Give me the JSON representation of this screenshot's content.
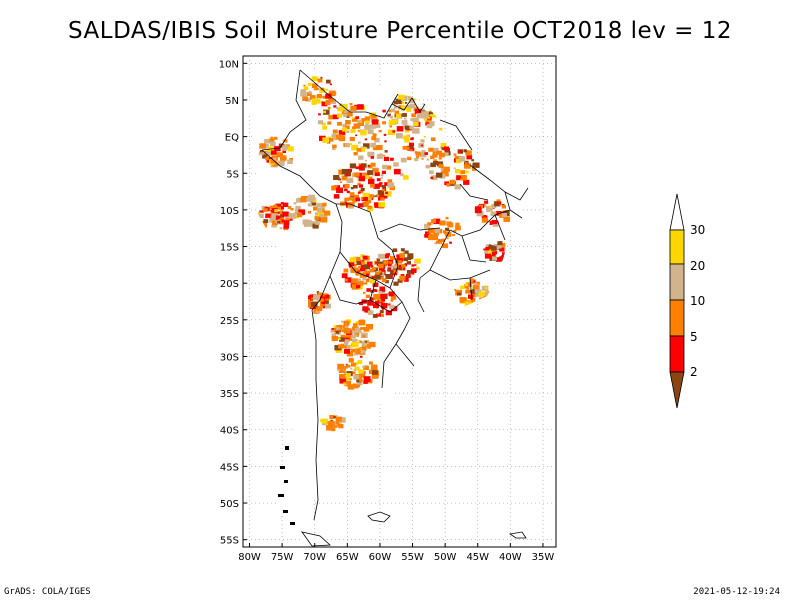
{
  "title": "SALDAS/IBIS Soil Moisture Percentile OCT2018 lev = 12",
  "footer": {
    "left": "GrADS: COLA/IGES",
    "right": "2021-05-12-19:24"
  },
  "map": {
    "lon_range": [
      -81,
      -33
    ],
    "lat_range": [
      -56,
      11
    ],
    "lon_ticks": [
      {
        "lon": -80,
        "label": "80W"
      },
      {
        "lon": -75,
        "label": "75W"
      },
      {
        "lon": -70,
        "label": "70W"
      },
      {
        "lon": -65,
        "label": "65W"
      },
      {
        "lon": -60,
        "label": "60W"
      },
      {
        "lon": -55,
        "label": "55W"
      },
      {
        "lon": -50,
        "label": "50W"
      },
      {
        "lon": -45,
        "label": "45W"
      },
      {
        "lon": -40,
        "label": "40W"
      },
      {
        "lon": -35,
        "label": "35W"
      }
    ],
    "lat_ticks": [
      {
        "lat": 10,
        "label": "10N"
      },
      {
        "lat": 5,
        "label": "5N"
      },
      {
        "lat": 0,
        "label": "EQ"
      },
      {
        "lat": -5,
        "label": "5S"
      },
      {
        "lat": -10,
        "label": "10S"
      },
      {
        "lat": -15,
        "label": "15S"
      },
      {
        "lat": -20,
        "label": "20S"
      },
      {
        "lat": -25,
        "label": "25S"
      },
      {
        "lat": -30,
        "label": "30S"
      },
      {
        "lat": -35,
        "label": "35S"
      },
      {
        "lat": -40,
        "label": "40S"
      },
      {
        "lat": -45,
        "label": "45S"
      },
      {
        "lat": -50,
        "label": "50S"
      },
      {
        "lat": -55,
        "label": "55S"
      }
    ],
    "grid": true
  },
  "colorbar": {
    "labels": [
      "2",
      "5",
      "10",
      "20",
      "30"
    ],
    "colors": [
      "#8b4513",
      "#ff0000",
      "#ff8000",
      "#d2b48c",
      "#ffd700",
      "#ffffff"
    ]
  }
}
